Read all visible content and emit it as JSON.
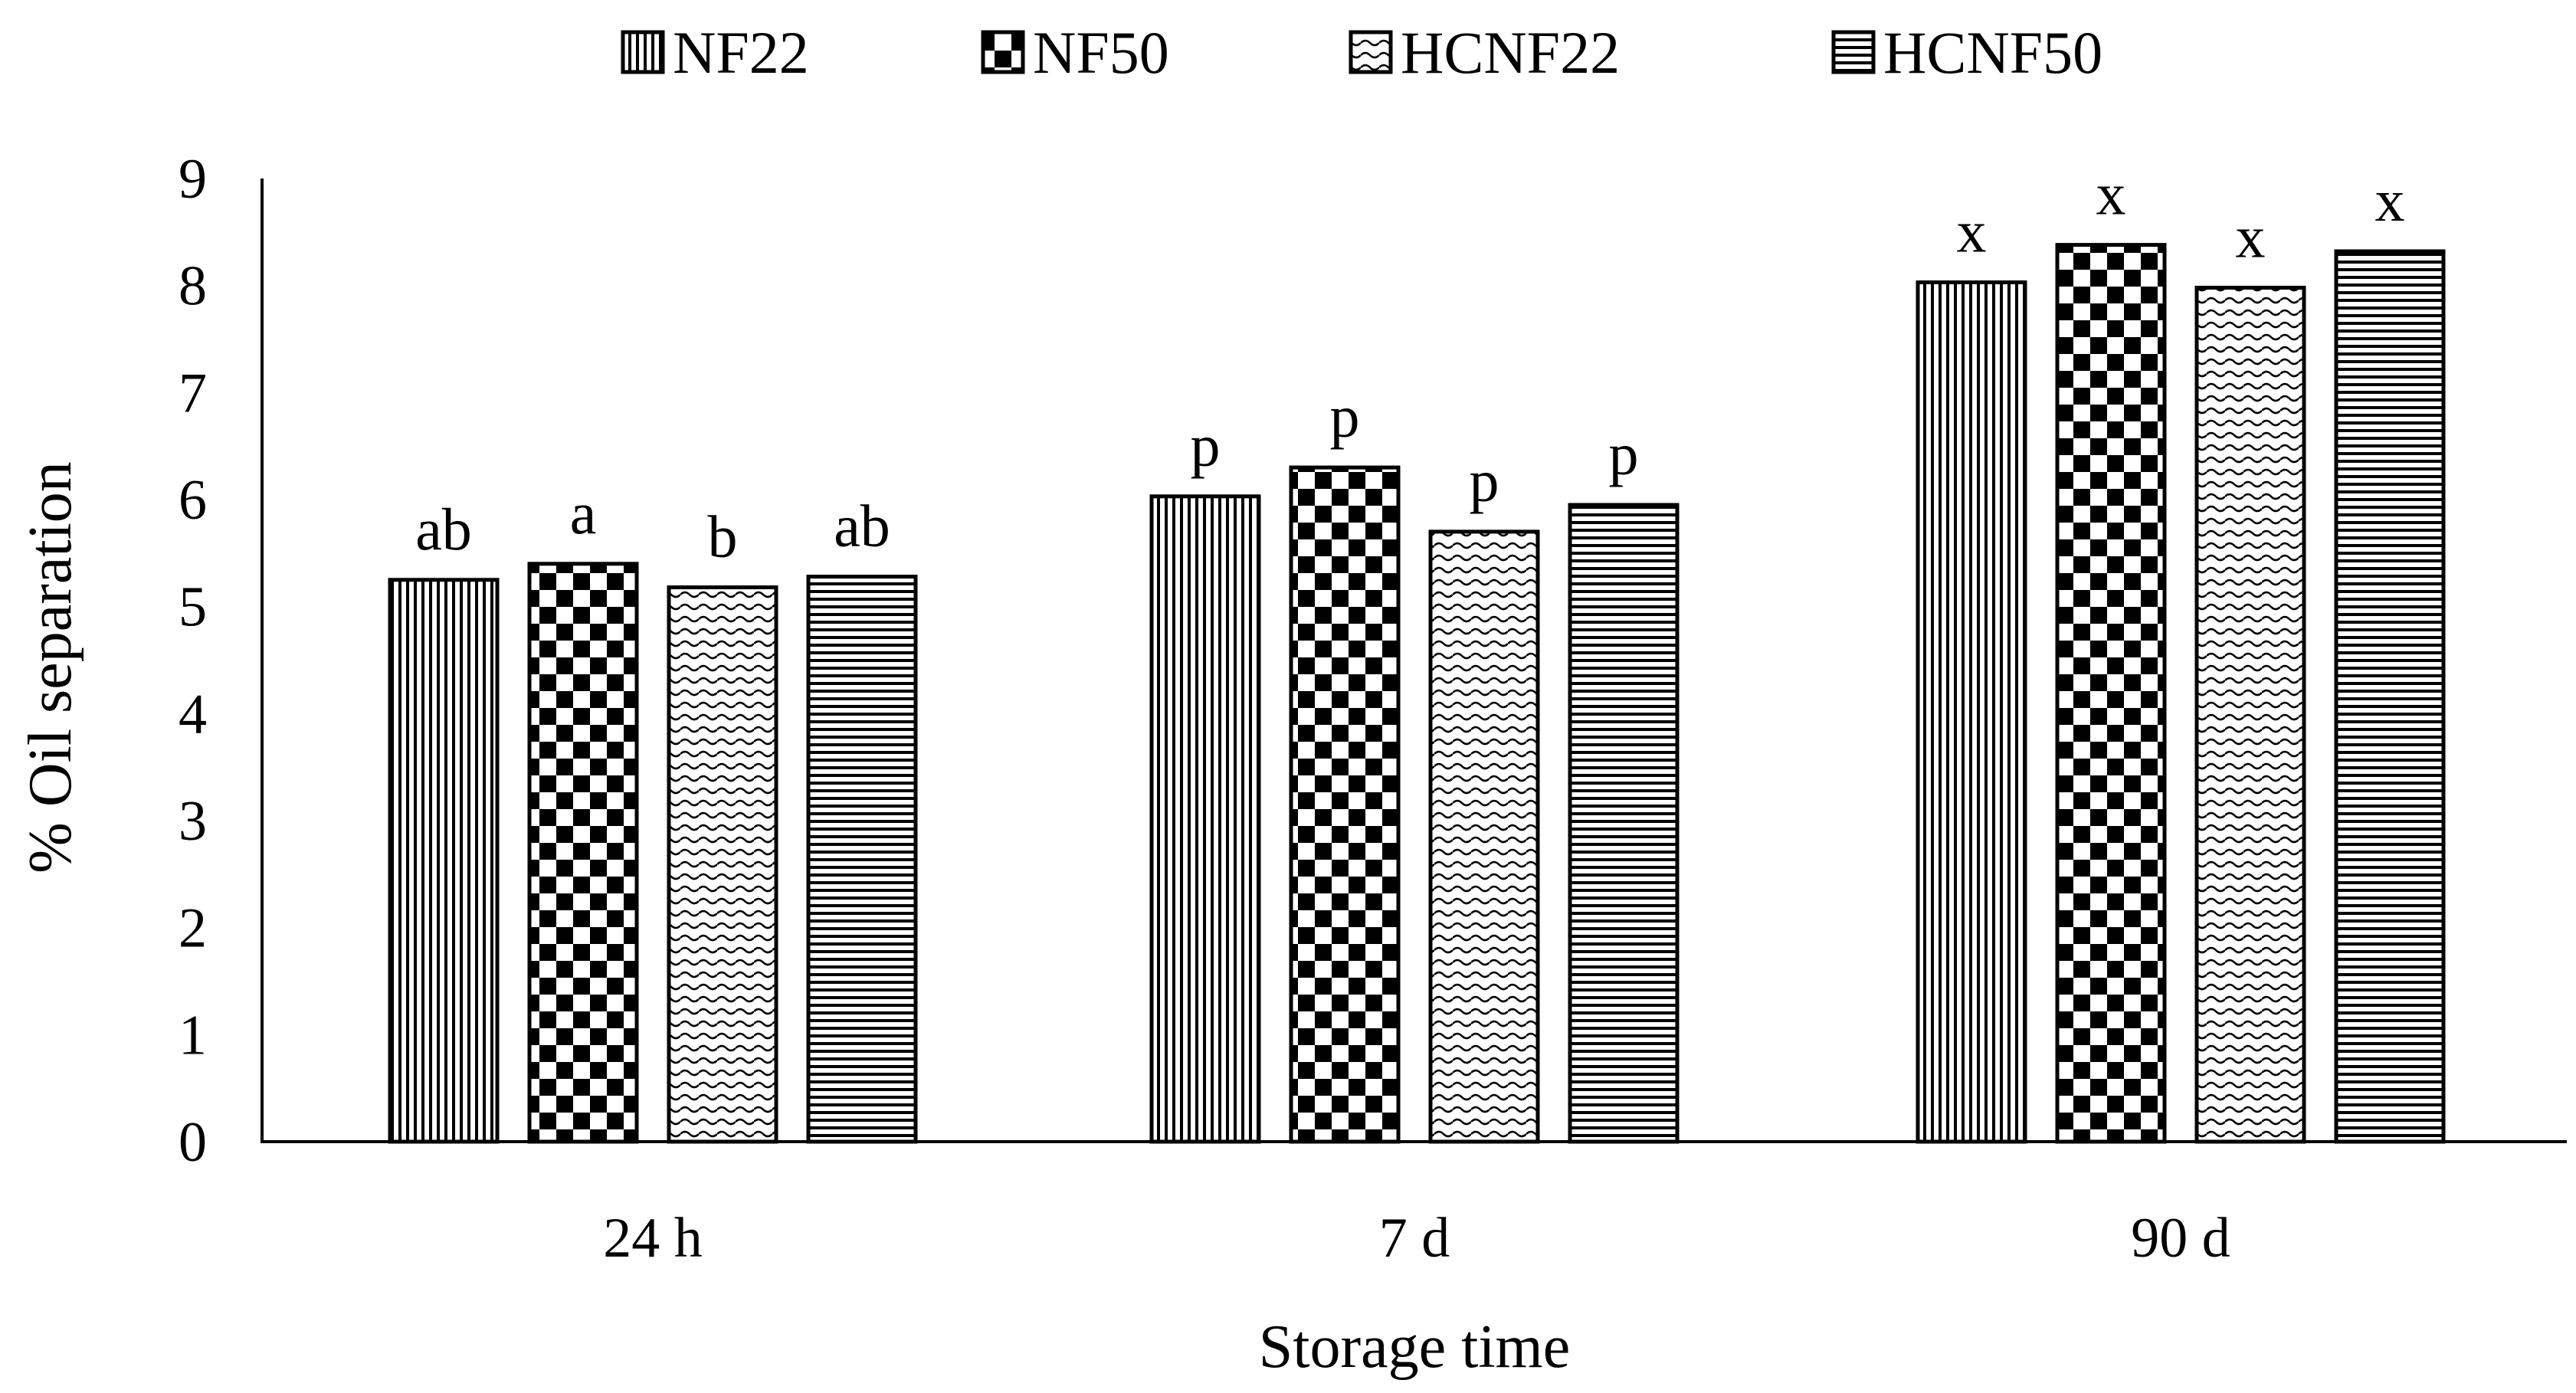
{
  "chart_data": {
    "type": "bar",
    "title": "",
    "xlabel": "Storage time",
    "ylabel": "% Oil separation",
    "ylim": [
      0,
      9
    ],
    "yticks": [
      0,
      1,
      2,
      3,
      4,
      5,
      6,
      7,
      8,
      9
    ],
    "grid": false,
    "legend_position": "top",
    "categories": [
      "24 h",
      "7 d",
      "90 d"
    ],
    "series": [
      {
        "name": "NF22",
        "pattern": "vertical-lines",
        "values": [
          5.25,
          6.03,
          8.03
        ],
        "labels": [
          "ab",
          "p",
          "x"
        ]
      },
      {
        "name": "NF50",
        "pattern": "checkerboard",
        "values": [
          5.4,
          6.3,
          8.38
        ],
        "labels": [
          "a",
          "p",
          "x"
        ]
      },
      {
        "name": "HCNF22",
        "pattern": "wave",
        "values": [
          5.18,
          5.7,
          7.98
        ],
        "labels": [
          "b",
          "p",
          "x"
        ]
      },
      {
        "name": "HCNF50",
        "pattern": "horizontal-lines",
        "values": [
          5.28,
          5.95,
          8.32
        ],
        "labels": [
          "ab",
          "p",
          "x"
        ]
      }
    ],
    "colors": {
      "ink": "#000000",
      "background": "#ffffff"
    }
  }
}
